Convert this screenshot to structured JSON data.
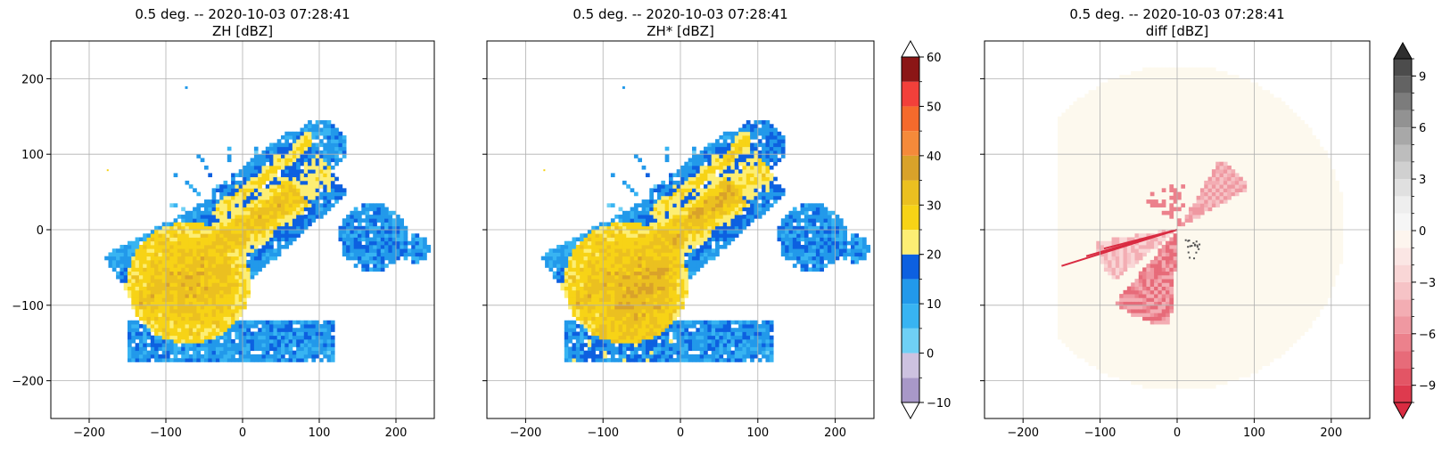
{
  "chart_data": [
    {
      "type": "heatmap",
      "title": "0.5 deg. -- 2020-10-03 07:28:41",
      "subtitle": "ZH [dBZ]",
      "xlim": [
        -250,
        250
      ],
      "ylim": [
        -250,
        250
      ],
      "xticks": [
        -200,
        -100,
        0,
        100,
        200
      ],
      "yticks": [
        200,
        100,
        0,
        -100,
        -200
      ],
      "xtick_labels": [
        "−200",
        "−100",
        "0",
        "100",
        "200"
      ],
      "ytick_labels": [
        "200",
        "100",
        "0",
        "−100",
        "−200"
      ],
      "grid": true,
      "variant": "zh"
    },
    {
      "type": "heatmap",
      "title": "0.5 deg. -- 2020-10-03 07:28:41",
      "subtitle": "ZH* [dBZ]",
      "xlim": [
        -250,
        250
      ],
      "ylim": [
        -250,
        250
      ],
      "xticks": [
        -200,
        -100,
        0,
        100,
        200
      ],
      "yticks": [
        200,
        100,
        0,
        -100,
        -200
      ],
      "xtick_labels": [
        "−200",
        "−100",
        "0",
        "100",
        "200"
      ],
      "ytick_labels": [],
      "grid": true,
      "variant": "zhstar",
      "colorbar": {
        "range": [
          -10,
          60
        ],
        "ticks": [
          60,
          50,
          40,
          30,
          20,
          10,
          0,
          -10
        ],
        "tick_labels": [
          "60",
          "50",
          "40",
          "30",
          "20",
          "10",
          "0",
          "−10"
        ],
        "levels": [
          -10,
          -5,
          0,
          5,
          10,
          15,
          20,
          25,
          30,
          35,
          40,
          45,
          50,
          55,
          60
        ],
        "colors": [
          "#a898c8",
          "#cdc2e0",
          "#6fd0f5",
          "#38b4f2",
          "#2299ea",
          "#0d60e0",
          "#fdee74",
          "#f7d316",
          "#ebc020",
          "#d9a22a",
          "#f58a3a",
          "#f56a2c",
          "#f2403a",
          "#8b1616"
        ],
        "over_color": "#ffffff",
        "under_color": "#ffffff"
      }
    },
    {
      "type": "heatmap",
      "title": "0.5 deg. -- 2020-10-03 07:28:41",
      "subtitle": "diff [dBZ]",
      "xlim": [
        -250,
        250
      ],
      "ylim": [
        -250,
        250
      ],
      "xticks": [
        -200,
        -100,
        0,
        100,
        200
      ],
      "yticks": [
        200,
        100,
        0,
        -100,
        -200
      ],
      "xtick_labels": [
        "−200",
        "−100",
        "0",
        "100",
        "200"
      ],
      "ytick_labels": [],
      "grid": true,
      "variant": "diff",
      "colorbar": {
        "range": [
          -10,
          10
        ],
        "ticks": [
          9,
          6,
          3,
          0,
          -3,
          -6,
          -9
        ],
        "tick_labels": [
          "9",
          "6",
          "3",
          "0",
          "−3",
          "−6",
          "−9"
        ],
        "levels": [
          -10,
          -9,
          -8,
          -7,
          -6,
          -5,
          -4,
          -3,
          -2,
          -1,
          0,
          1,
          2,
          3,
          4,
          5,
          6,
          7,
          8,
          9,
          10
        ],
        "colors": [
          "#de3a4e",
          "#e35565",
          "#e76b79",
          "#ec818c",
          "#ef98a1",
          "#f3adb3",
          "#f6c3c6",
          "#f9d6d6",
          "#fbe6e4",
          "#fdf5ee",
          "#f6f6f6",
          "#eeeeee",
          "#e0e0e0",
          "#d0d0d0",
          "#bdbdbd",
          "#a8a8a8",
          "#929292",
          "#7c7c7c",
          "#636363",
          "#4c4c4c"
        ],
        "over_color": "#2f2f2f",
        "under_color": "#d92b41"
      }
    }
  ]
}
